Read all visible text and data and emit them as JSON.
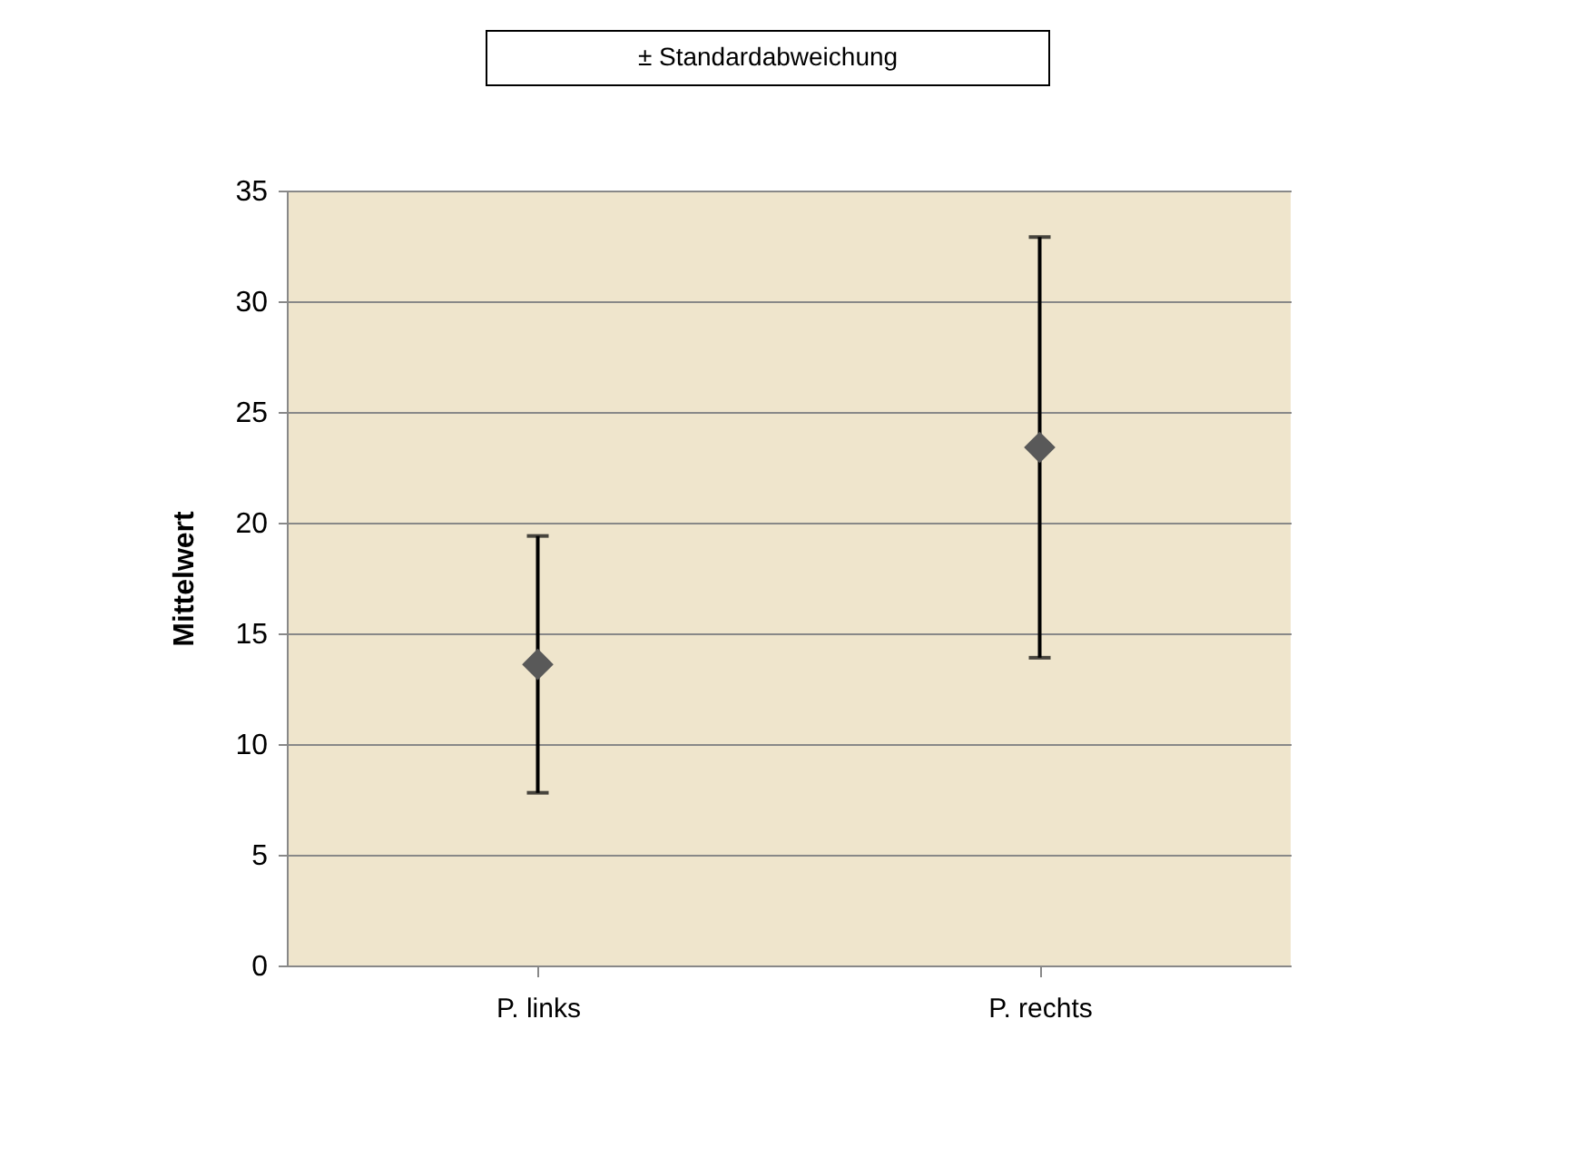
{
  "chart_data": {
    "type": "scatter",
    "ylabel": "Mittelwert",
    "categories": [
      "P. links",
      "P. rechts"
    ],
    "series": [
      {
        "color": "#595959",
        "values": [
          13.6,
          23.4
        ],
        "errors": [
          [
            7.8,
            19.4
          ],
          [
            13.9,
            32.9
          ]
        ]
      }
    ],
    "annotations": [
      "± Standardabweichung"
    ],
    "ylim": [
      0,
      35
    ],
    "yticks": [
      0,
      5,
      10,
      15,
      20,
      25,
      30,
      35
    ],
    "grid": "y",
    "marker": "diamond"
  }
}
